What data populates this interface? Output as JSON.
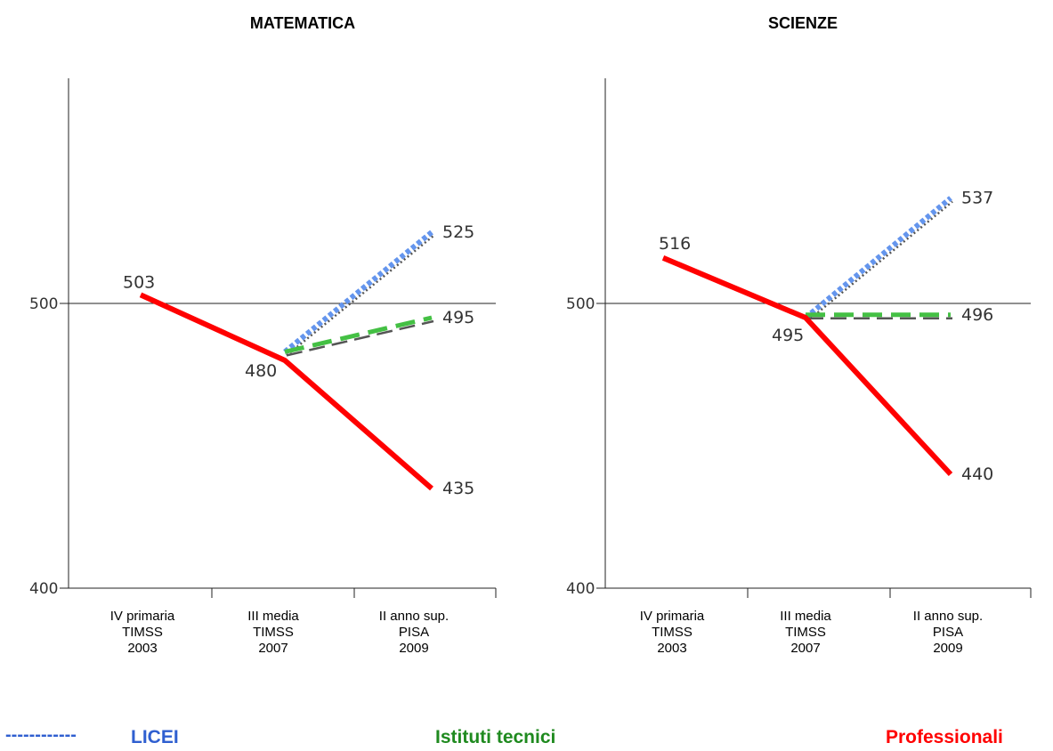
{
  "chart_data": [
    {
      "type": "line",
      "title": "MATEMATICA",
      "categories": [
        "IV primaria TIMSS 2003",
        "III media TIMSS 2007",
        "II  anno sup. PISA 2009"
      ],
      "category_lines": [
        [
          "IV primaria",
          "TIMSS",
          "2003"
        ],
        [
          "III media",
          "TIMSS",
          "2007"
        ],
        [
          "II  anno sup.",
          "PISA",
          "2009"
        ]
      ],
      "ylim": [
        400,
        600
      ],
      "yticks": [
        400,
        500
      ],
      "reference_line": 500,
      "series": [
        {
          "name": "LICEI",
          "values": [
            null,
            483,
            525
          ],
          "color": "#6495ed",
          "style": "dotted"
        },
        {
          "name": "Istituti tecnici",
          "values": [
            null,
            483,
            495
          ],
          "color": "#44c044",
          "style": "dashed"
        },
        {
          "name": "Professionali",
          "values": [
            503,
            480,
            435
          ],
          "color": "#ff0000",
          "style": "solid"
        }
      ],
      "data_labels": [
        {
          "text": "503",
          "series": 2,
          "index": 0
        },
        {
          "text": "480",
          "series": 2,
          "index": 1
        },
        {
          "text": "435",
          "series": 2,
          "index": 2
        },
        {
          "text": "525",
          "series": 0,
          "index": 2
        },
        {
          "text": "495",
          "series": 1,
          "index": 2
        }
      ]
    },
    {
      "type": "line",
      "title": "SCIENZE",
      "categories": [
        "IV primaria TIMSS 2003",
        "III media TIMSS 2007",
        "II anno sup. PISA 2009"
      ],
      "category_lines": [
        [
          "IV primaria",
          "TIMSS",
          "2003"
        ],
        [
          "III media",
          "TIMSS",
          "2007"
        ],
        [
          "II anno sup.",
          "PISA",
          "2009"
        ]
      ],
      "ylim": [
        400,
        600
      ],
      "yticks": [
        400,
        500
      ],
      "reference_line": 500,
      "series": [
        {
          "name": "LICEI",
          "values": [
            null,
            495,
            537
          ],
          "color": "#6495ed",
          "style": "dotted"
        },
        {
          "name": "Istituti tecnici",
          "values": [
            null,
            496,
            496
          ],
          "color": "#44c044",
          "style": "dashed"
        },
        {
          "name": "Professionali",
          "values": [
            516,
            495,
            440
          ],
          "color": "#ff0000",
          "style": "solid"
        }
      ],
      "data_labels": [
        {
          "text": "516",
          "series": 2,
          "index": 0
        },
        {
          "text": "495",
          "series": 2,
          "index": 1
        },
        {
          "text": "440",
          "series": 2,
          "index": 2
        },
        {
          "text": "537",
          "series": 0,
          "index": 2
        },
        {
          "text": "496",
          "series": 1,
          "index": 2
        }
      ]
    }
  ],
  "legend": {
    "dash_sample": "------------",
    "licei": "LICEI",
    "tecnici": "Istituti tecnici",
    "professionali": "Professionali"
  }
}
